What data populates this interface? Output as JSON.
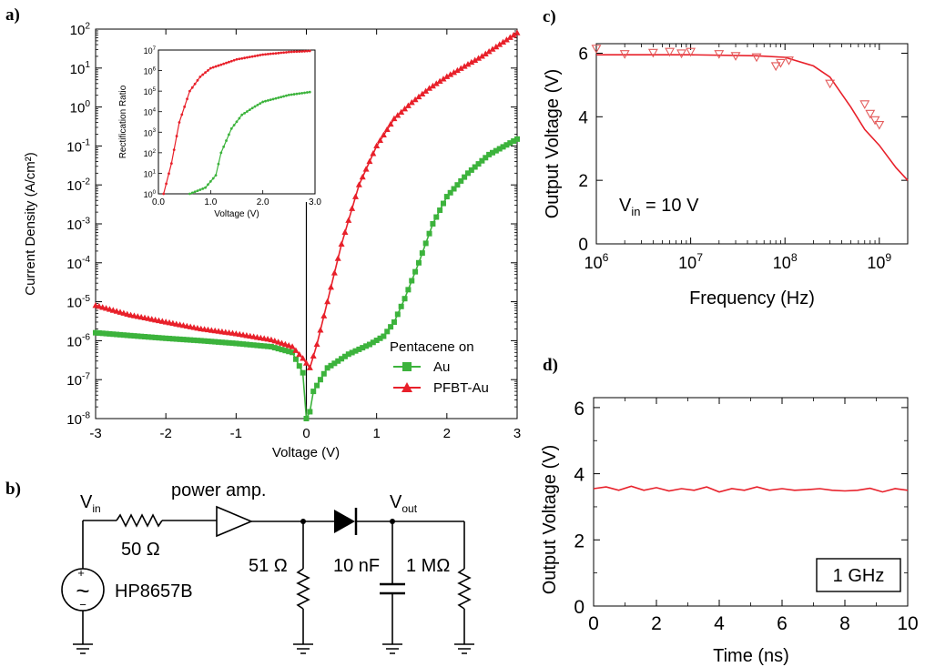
{
  "panel_labels": {
    "a": "a)",
    "b": "b)",
    "c": "c)",
    "d": "d)"
  },
  "colors": {
    "red": "#e8202a",
    "green": "#3cb33c",
    "red_light": "#e45b5b"
  },
  "chart_data": [
    {
      "id": "a",
      "type": "scatter",
      "title": "",
      "xlabel": "Voltage (V)",
      "ylabel": "Current Density (A/cm²)",
      "xlim": [
        -3,
        3
      ],
      "ylim": [
        1e-08,
        100
      ],
      "yscale": "log",
      "x_ticks": [
        "-3",
        "-2",
        "-1",
        "0",
        "1",
        "2",
        "3"
      ],
      "y_tick_mantissa": "10",
      "y_tick_exponents": [
        "2",
        "1",
        "0",
        "-1",
        "-2",
        "-3",
        "-4",
        "-5",
        "-6",
        "-7",
        "-8"
      ],
      "legend": {
        "title": "Pentacene on",
        "position": "lower-right"
      },
      "series": [
        {
          "name": "Au",
          "marker": "square",
          "color": "#3cb33c",
          "points": [
            [
              -3,
              1.6e-06
            ],
            [
              -2.5,
              1.35e-06
            ],
            [
              -2,
              1.15e-06
            ],
            [
              -1.5,
              1e-06
            ],
            [
              -1,
              8.5e-07
            ],
            [
              -0.5,
              7e-07
            ],
            [
              -0.2,
              5e-07
            ],
            [
              -0.05,
              1.5e-07
            ],
            [
              0,
              1e-08
            ],
            [
              0.05,
              1.5e-08
            ],
            [
              0.1,
              5e-08
            ],
            [
              0.3,
              2e-07
            ],
            [
              0.6,
              4.5e-07
            ],
            [
              0.9,
              8e-07
            ],
            [
              1.1,
              1.3e-06
            ],
            [
              1.25,
              3e-06
            ],
            [
              1.4,
              1.2e-05
            ],
            [
              1.6,
              0.0001
            ],
            [
              1.8,
              0.001
            ],
            [
              2,
              0.005
            ],
            [
              2.3,
              0.02
            ],
            [
              2.6,
              0.06
            ],
            [
              3,
              0.15
            ]
          ]
        },
        {
          "name": "PFBT-Au",
          "marker": "triangle",
          "color": "#e8202a",
          "points": [
            [
              -3,
              8e-06
            ],
            [
              -2.5,
              4.5e-06
            ],
            [
              -2,
              3e-06
            ],
            [
              -1.5,
              2e-06
            ],
            [
              -1,
              1.5e-06
            ],
            [
              -0.5,
              1.05e-06
            ],
            [
              -0.2,
              7e-07
            ],
            [
              -0.05,
              3.5e-07
            ],
            [
              0.05,
              2e-07
            ],
            [
              0.15,
              8e-07
            ],
            [
              0.3,
              1e-05
            ],
            [
              0.5,
              0.0003
            ],
            [
              0.75,
              0.01
            ],
            [
              1,
              0.1
            ],
            [
              1.25,
              0.5
            ],
            [
              1.5,
              1.3
            ],
            [
              1.75,
              3
            ],
            [
              2,
              6
            ],
            [
              2.25,
              11
            ],
            [
              2.5,
              20
            ],
            [
              2.75,
              40
            ],
            [
              3,
              80
            ]
          ]
        }
      ],
      "inset": {
        "type": "line",
        "xlabel": "Voltage (V)",
        "ylabel": "Rectification Ratio",
        "xlim": [
          0,
          3
        ],
        "ylim": [
          1,
          10000000.0
        ],
        "yscale": "log",
        "x_ticks": [
          "0.0",
          "1.0",
          "2.0",
          "3.0"
        ],
        "y_tick_mantissa": "10",
        "y_tick_exponents": [
          "7",
          "6",
          "5",
          "4",
          "3",
          "2",
          "1",
          "0"
        ],
        "series": [
          {
            "name": "PFBT-Au",
            "color": "#e8202a",
            "points": [
              [
                0.1,
                1
              ],
              [
                0.25,
                30
              ],
              [
                0.4,
                3000
              ],
              [
                0.6,
                100000.0
              ],
              [
                0.8,
                500000.0
              ],
              [
                1,
                1300000.0
              ],
              [
                1.5,
                3500000.0
              ],
              [
                2,
                6000000.0
              ],
              [
                2.5,
                8000000.0
              ],
              [
                2.9,
                9000000.0
              ]
            ]
          },
          {
            "name": "Au",
            "color": "#3cb33c",
            "points": [
              [
                0.6,
                1
              ],
              [
                0.9,
                2
              ],
              [
                1.1,
                8
              ],
              [
                1.2,
                100
              ],
              [
                1.4,
                1500
              ],
              [
                1.6,
                7000
              ],
              [
                1.8,
                15000
              ],
              [
                2,
                30000
              ],
              [
                2.5,
                65000
              ],
              [
                2.9,
                90000
              ]
            ]
          }
        ]
      }
    },
    {
      "id": "c",
      "type": "line",
      "title": "",
      "xlabel": "Frequency (Hz)",
      "ylabel": "Output Voltage (V)",
      "xscale": "log",
      "xlim": [
        1000000.0,
        2000000000.0
      ],
      "ylim": [
        0,
        6.3
      ],
      "x_tick_mantissa": "10",
      "x_tick_exponents": [
        "6",
        "7",
        "8",
        "9"
      ],
      "y_ticks": [
        "0",
        "2",
        "4",
        "6"
      ],
      "annotation": {
        "main": "V",
        "sub": "in",
        "rest": " = 10 V"
      },
      "fit_line": [
        [
          1000000.0,
          5.95
        ],
        [
          10000000.0,
          5.95
        ],
        [
          50000000.0,
          5.92
        ],
        [
          100000000.0,
          5.87
        ],
        [
          200000000.0,
          5.6
        ],
        [
          300000000.0,
          5.25
        ],
        [
          500000000.0,
          4.3
        ],
        [
          700000000.0,
          3.6
        ],
        [
          1000000000.0,
          3.1
        ],
        [
          1500000000.0,
          2.4
        ],
        [
          2000000000.0,
          2.0
        ]
      ],
      "markers": [
        [
          1000000.0,
          6.15
        ],
        [
          2000000.0,
          5.98
        ],
        [
          4000000.0,
          6.02
        ],
        [
          6000000.0,
          6.05
        ],
        [
          8000000.0,
          6.0
        ],
        [
          10000000.0,
          6.05
        ],
        [
          20000000.0,
          5.98
        ],
        [
          30000000.0,
          5.92
        ],
        [
          50000000.0,
          5.88
        ],
        [
          80000000.0,
          5.6
        ],
        [
          90000000.0,
          5.7
        ],
        [
          110000000.0,
          5.78
        ],
        [
          300000000.0,
          5.05
        ],
        [
          700000000.0,
          4.4
        ],
        [
          800000000.0,
          4.1
        ],
        [
          900000000.0,
          3.9
        ],
        [
          1000000000.0,
          3.75
        ]
      ]
    },
    {
      "id": "d",
      "type": "line",
      "title": "",
      "xlabel": "Time (ns)",
      "ylabel": "Output Voltage (V)",
      "xlim": [
        0,
        10
      ],
      "ylim": [
        0,
        6.3
      ],
      "x_ticks": [
        "0",
        "2",
        "4",
        "6",
        "8",
        "10"
      ],
      "y_ticks": [
        "0",
        "2",
        "4",
        "6"
      ],
      "annotation": "1 GHz",
      "x": [
        0,
        0.4,
        0.8,
        1.2,
        1.6,
        2.0,
        2.4,
        2.8,
        3.2,
        3.6,
        4.0,
        4.4,
        4.8,
        5.2,
        5.6,
        6.0,
        6.4,
        6.8,
        7.2,
        7.6,
        8.0,
        8.4,
        8.8,
        9.2,
        9.6,
        10.0
      ],
      "y": [
        3.55,
        3.6,
        3.5,
        3.62,
        3.5,
        3.58,
        3.48,
        3.55,
        3.5,
        3.6,
        3.45,
        3.55,
        3.5,
        3.6,
        3.5,
        3.55,
        3.5,
        3.52,
        3.55,
        3.5,
        3.48,
        3.5,
        3.56,
        3.45,
        3.55,
        3.5
      ]
    }
  ],
  "circuit": {
    "vin_main": "V",
    "vin_sub": "in",
    "vout_main": "V",
    "vout_sub": "out",
    "amp_label": "power amp.",
    "r1": "50 Ω",
    "r2": "51 Ω",
    "cap": "10 nF",
    "r3": "1 MΩ",
    "source": "HP8657B",
    "plus": "+",
    "minus": "−",
    "ac_symbol": "~"
  }
}
